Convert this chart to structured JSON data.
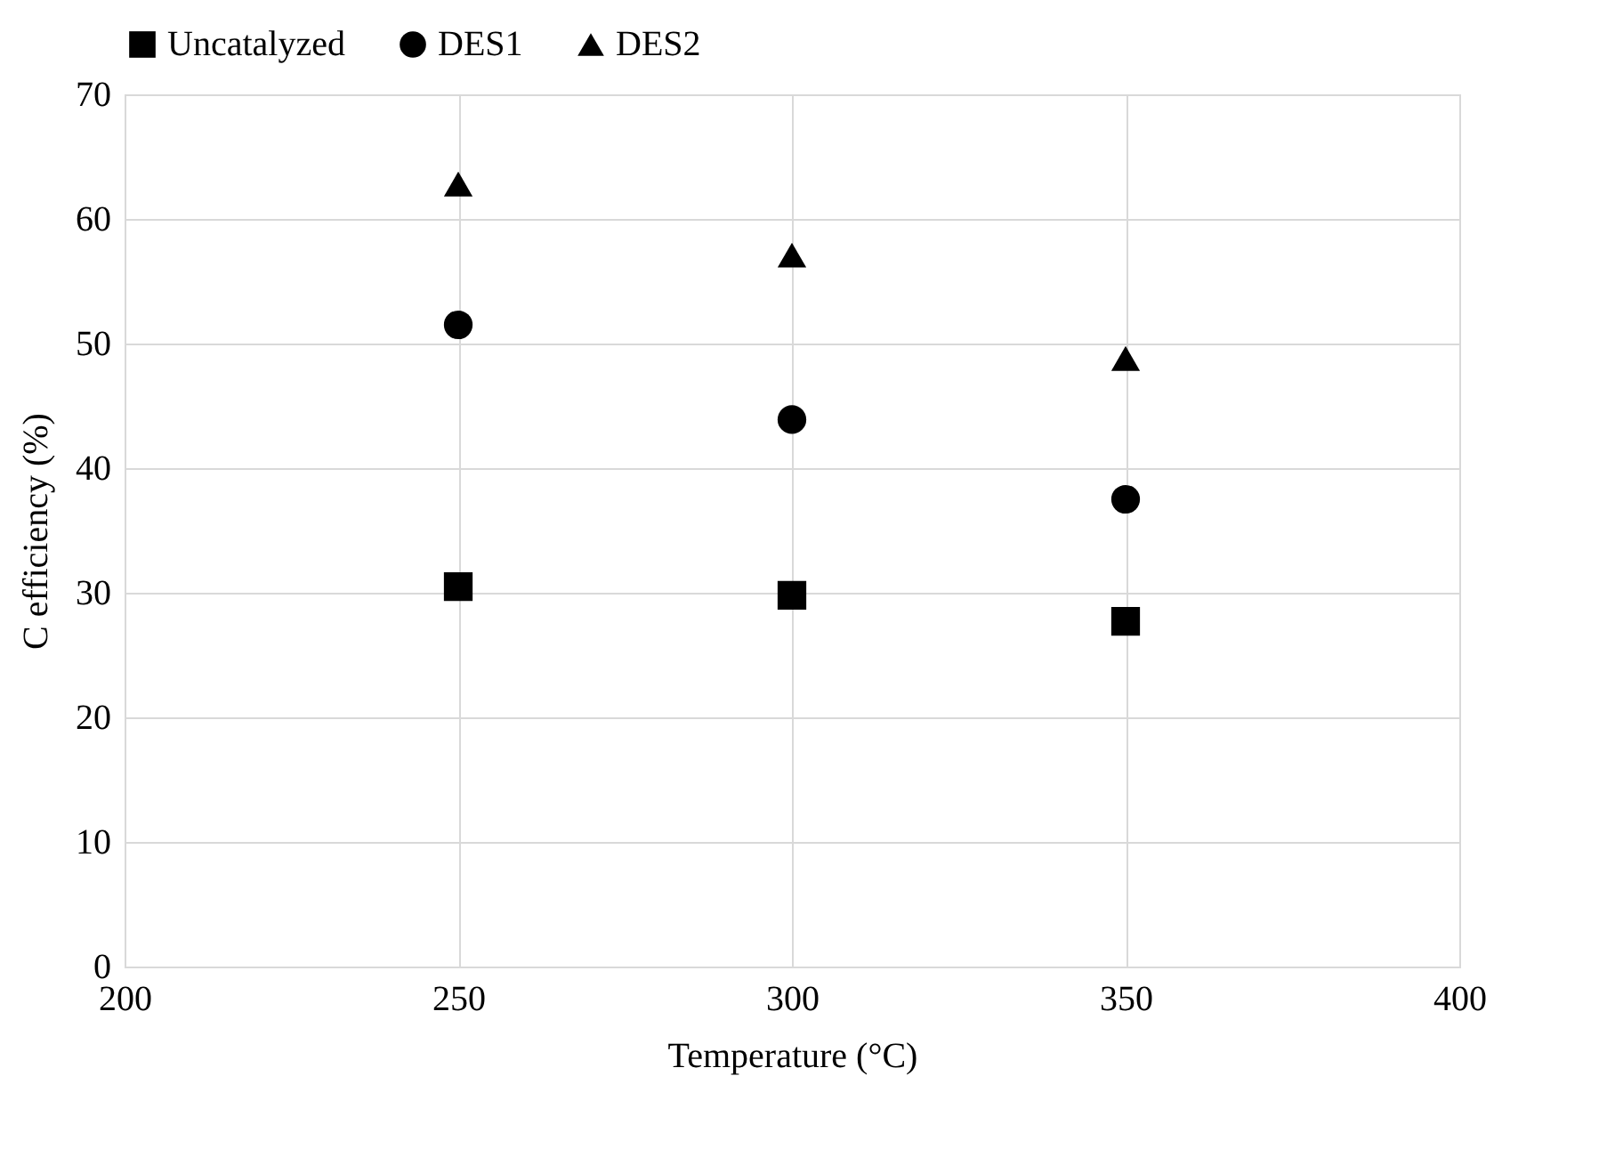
{
  "chart_data": {
    "type": "scatter",
    "xlabel": "Temperature (°C)",
    "ylabel": "C efficiency (%)",
    "x": [
      250,
      300,
      350
    ],
    "series": [
      {
        "name": "Uncatalyzed",
        "color": "#000000",
        "marker": "square",
        "values": [
          30.5,
          29.8,
          27.7
        ]
      },
      {
        "name": "DES1",
        "color": "#000000",
        "marker": "circle",
        "values": [
          51.5,
          43.9,
          37.5
        ]
      },
      {
        "name": "DES2",
        "color": "#000000",
        "marker": "triangle",
        "values": [
          62.8,
          57.1,
          48.8
        ]
      }
    ],
    "xlim": [
      200,
      400
    ],
    "xticks": [
      200,
      250,
      300,
      350,
      400
    ],
    "ylim": [
      0,
      70
    ],
    "yticks": [
      0,
      10,
      20,
      30,
      40,
      50,
      60,
      70
    ],
    "grid": true,
    "legend": "top"
  }
}
